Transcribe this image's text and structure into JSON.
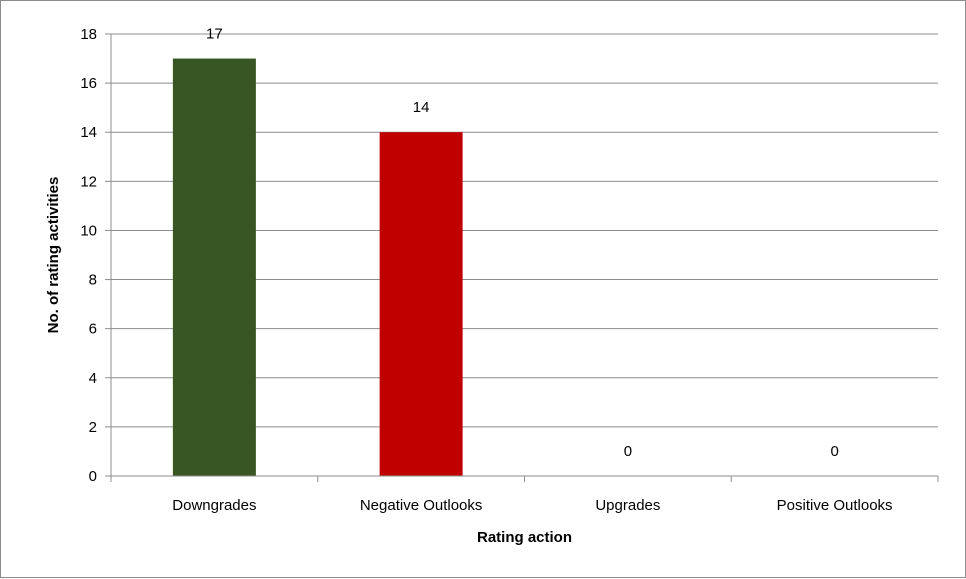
{
  "chart_data": {
    "type": "bar",
    "title": "",
    "xlabel": "Rating action",
    "ylabel": "No. of rating activities",
    "categories": [
      "Downgrades",
      "Negative Outlooks",
      "Upgrades",
      "Positive Outlooks"
    ],
    "values": [
      17,
      14,
      0,
      0
    ],
    "data_labels": [
      "17",
      "14",
      "0",
      "0"
    ],
    "bar_colors": [
      "#375623",
      "#c00000",
      "#375623",
      "#c00000"
    ],
    "ylim": [
      0,
      18
    ],
    "yticks": [
      0,
      2,
      4,
      6,
      8,
      10,
      12,
      14,
      16,
      18
    ],
    "grid": true,
    "legend": "none"
  }
}
